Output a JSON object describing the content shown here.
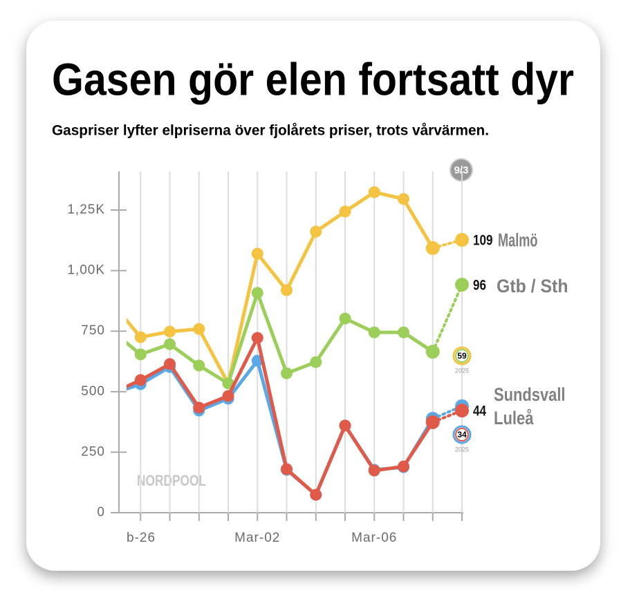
{
  "chart_data": {
    "type": "line",
    "title": "Gasen gör elen fortsatt dyr",
    "subtitle": "Gaspriser lyfter elpriserna över fjolårets priser, trots vårvärmen.",
    "date_badge": "9/3",
    "source": "NORDPOOL",
    "categories": [
      null,
      "b-26",
      null,
      null,
      null,
      "Mar-02",
      null,
      null,
      null,
      "Mar-06",
      null,
      null,
      null
    ],
    "ylim": [
      0,
      1410
    ],
    "yticks": [
      0,
      250,
      500,
      750,
      {
        "value": 1000,
        "label": "1,00K"
      },
      {
        "value": 1250,
        "label": "1,25K"
      }
    ],
    "series": [
      {
        "name": "Malmö",
        "latest": 109,
        "color": "#f5c342",
        "values": [
          870,
          725,
          748,
          759,
          534,
          1070,
          919,
          1161,
          1244,
          1324,
          1296,
          1093,
          1127
        ]
      },
      {
        "name": "Gtb / Sth",
        "latest": 96,
        "color": "#9ccf5a",
        "values": [
          753,
          654,
          696,
          608,
          534,
          908,
          576,
          622,
          802,
          745,
          745,
          665,
          942
        ]
      },
      {
        "name": "Sundsvall",
        "color": "#5aa9e6",
        "values": [
          490,
          531,
          602,
          422,
          471,
          628,
          177,
          74,
          360,
          177,
          188,
          388,
          440
        ]
      },
      {
        "name": "Luleå",
        "latest": 44,
        "color": "#e05a4a",
        "values": [
          491,
          548,
          614,
          434,
          482,
          722,
          180,
          74,
          360,
          174,
          191,
          374,
          422
        ]
      }
    ],
    "comparisons": [
      {
        "value": 59,
        "label": "2025"
      },
      {
        "value": 34,
        "label": "2025"
      }
    ]
  }
}
